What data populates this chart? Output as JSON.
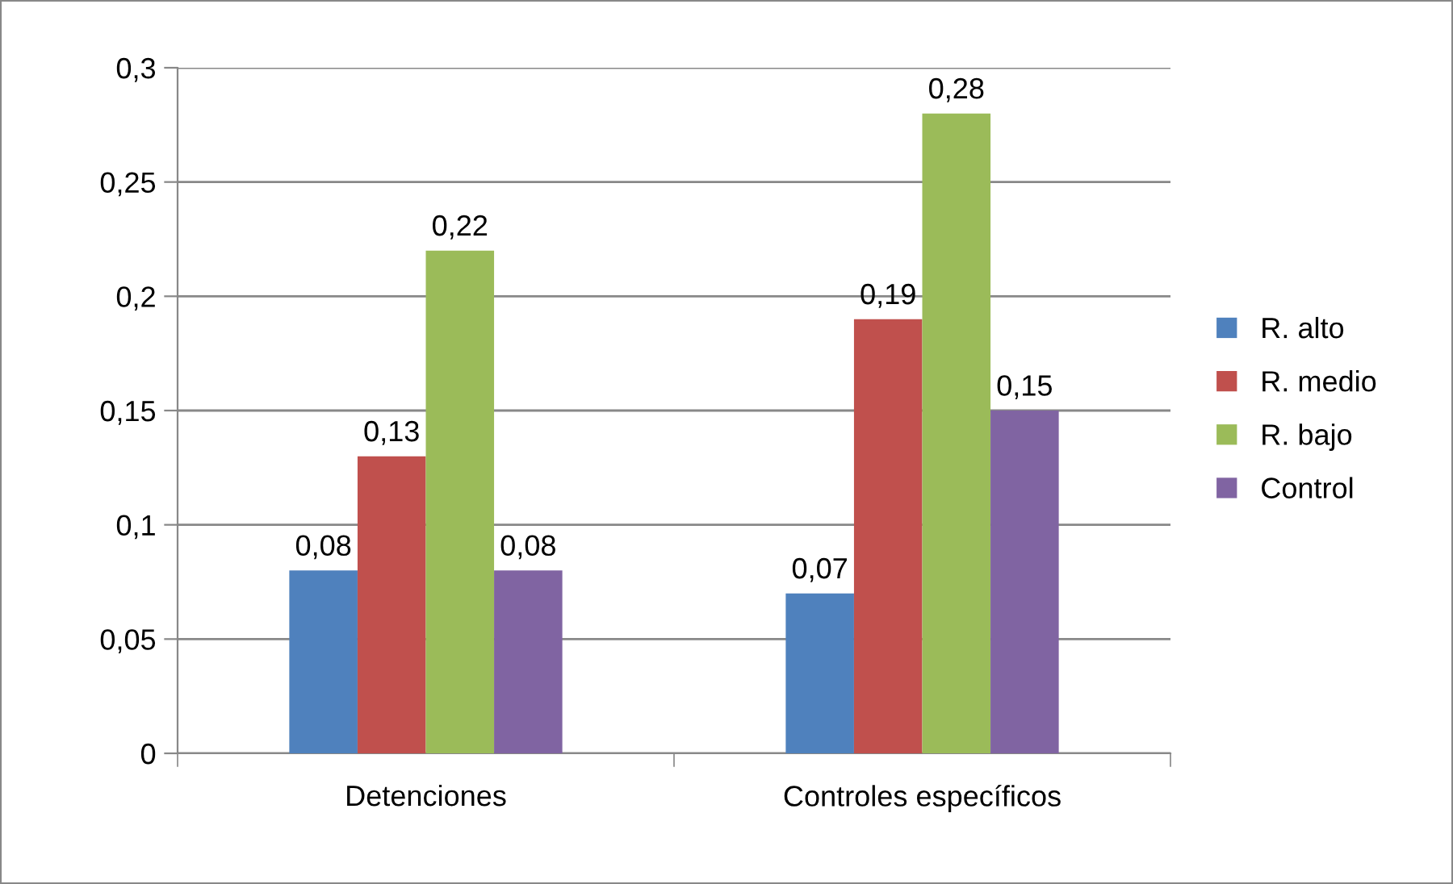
{
  "chart_data": {
    "type": "bar",
    "categories": [
      "Detenciones",
      "Controles específicos"
    ],
    "series": [
      {
        "name": "R. alto",
        "color": "#4f81bd",
        "values": [
          0.08,
          0.07
        ],
        "value_labels": [
          "0,08",
          "0,07"
        ]
      },
      {
        "name": "R. medio",
        "color": "#c0504d",
        "values": [
          0.13,
          0.19
        ],
        "value_labels": [
          "0,13",
          "0,19"
        ]
      },
      {
        "name": "R. bajo",
        "color": "#9bbb59",
        "values": [
          0.22,
          0.28
        ],
        "value_labels": [
          "0,22",
          "0,28"
        ]
      },
      {
        "name": "Control",
        "color": "#8064a2",
        "values": [
          0.08,
          0.15
        ],
        "value_labels": [
          "0,08",
          "0,15"
        ]
      }
    ],
    "ylim": [
      0,
      0.3
    ],
    "yticks": [
      {
        "value": 0,
        "label": "0"
      },
      {
        "value": 0.05,
        "label": "0,05"
      },
      {
        "value": 0.1,
        "label": "0,1"
      },
      {
        "value": 0.15,
        "label": "0,15"
      },
      {
        "value": 0.2,
        "label": "0,2"
      },
      {
        "value": 0.25,
        "label": "0,25"
      },
      {
        "value": 0.3,
        "label": "0,3"
      }
    ],
    "grid": "y",
    "legend": "right"
  }
}
